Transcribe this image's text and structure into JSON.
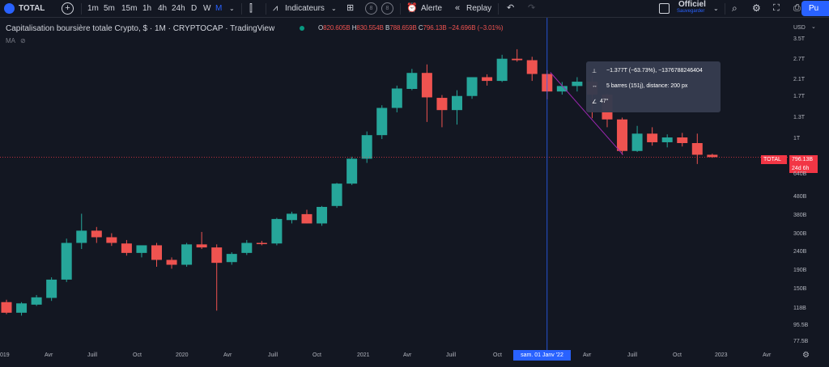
{
  "toolbar": {
    "symbol": "TOTAL",
    "intervals": [
      "1m",
      "5m",
      "15m",
      "1h",
      "4h",
      "24h",
      "D",
      "W",
      "M"
    ],
    "active_interval": "M",
    "indicators_label": "Indicateurs",
    "alert_label": "Alerte",
    "replay_label": "Replay",
    "save_title": "Officiel",
    "save_subtitle": "Sauvegarder",
    "publish_label": "Pu",
    "ring1": "8",
    "ring2": "8"
  },
  "legend": {
    "title": "Capitalisation boursière totale Crypto, $ · 1M · CRYPTOCAP · TradingView",
    "o_key": "O",
    "o_val": "820.605B",
    "h_key": "H",
    "h_val": "830.554B",
    "b_key": "B",
    "b_val": "788.659B",
    "c_key": "C",
    "c_val": "796.13B",
    "change": "−24.696B (−3.01%)",
    "ma": "MA"
  },
  "tooltip": {
    "line1": "−1.377T (−63.73%), −1376788246404",
    "line2": "5 barres (151j), distance: 200 px",
    "line3": "47°"
  },
  "price_tag": {
    "symbol": "TOTAL",
    "price": "796.13B",
    "countdown": "24d 6h"
  },
  "crosshair_date": "sam. 01 Janv '22",
  "chart_data": {
    "type": "candlestick",
    "title": "Capitalisation boursière totale Crypto, $ · 1M · CRYPTOCAP · TradingView",
    "y_scale": "log",
    "y_ticks": [
      "3.5T",
      "2.7T",
      "2.1T",
      "1.7T",
      "1.3T",
      "1T",
      "796.13B",
      "640B",
      "480B",
      "380B",
      "300B",
      "240B",
      "190B",
      "150B",
      "118B",
      "95.5B",
      "77.5B"
    ],
    "x_ticks": [
      "019",
      "Avr",
      "Juill",
      "Oct",
      "2020",
      "Avr",
      "Juill",
      "Oct",
      "2021",
      "Avr",
      "Juill",
      "Oct",
      "sam. 01 Janv '22",
      "Avr",
      "Juill",
      "Oct",
      "2023",
      "Avr"
    ],
    "candles": [
      {
        "o": 128,
        "h": 132,
        "l": 110,
        "c": 112
      },
      {
        "o": 112,
        "h": 128,
        "l": 108,
        "c": 126
      },
      {
        "o": 124,
        "h": 140,
        "l": 122,
        "c": 136
      },
      {
        "o": 135,
        "h": 175,
        "l": 130,
        "c": 170
      },
      {
        "o": 170,
        "h": 285,
        "l": 165,
        "c": 270
      },
      {
        "o": 270,
        "h": 390,
        "l": 250,
        "c": 315
      },
      {
        "o": 315,
        "h": 330,
        "l": 270,
        "c": 290
      },
      {
        "o": 290,
        "h": 305,
        "l": 260,
        "c": 270
      },
      {
        "o": 268,
        "h": 280,
        "l": 230,
        "c": 238
      },
      {
        "o": 238,
        "h": 260,
        "l": 225,
        "c": 262
      },
      {
        "o": 262,
        "h": 270,
        "l": 200,
        "c": 218
      },
      {
        "o": 218,
        "h": 225,
        "l": 195,
        "c": 205
      },
      {
        "o": 205,
        "h": 270,
        "l": 200,
        "c": 265
      },
      {
        "o": 265,
        "h": 310,
        "l": 250,
        "c": 255
      },
      {
        "o": 255,
        "h": 265,
        "l": 115,
        "c": 210
      },
      {
        "o": 212,
        "h": 240,
        "l": 205,
        "c": 235
      },
      {
        "o": 238,
        "h": 280,
        "l": 232,
        "c": 270
      },
      {
        "o": 270,
        "h": 277,
        "l": 262,
        "c": 266
      },
      {
        "o": 268,
        "h": 370,
        "l": 262,
        "c": 365
      },
      {
        "o": 360,
        "h": 400,
        "l": 345,
        "c": 390
      },
      {
        "o": 388,
        "h": 410,
        "l": 345,
        "c": 345
      },
      {
        "o": 345,
        "h": 430,
        "l": 335,
        "c": 425
      },
      {
        "o": 430,
        "h": 575,
        "l": 420,
        "c": 570
      },
      {
        "o": 570,
        "h": 800,
        "l": 560,
        "c": 780
      },
      {
        "o": 780,
        "h": 1100,
        "l": 740,
        "c": 1050
      },
      {
        "o": 1050,
        "h": 1530,
        "l": 1000,
        "c": 1480
      },
      {
        "o": 1480,
        "h": 1960,
        "l": 1400,
        "c": 1890
      },
      {
        "o": 1880,
        "h": 2420,
        "l": 1850,
        "c": 2300
      },
      {
        "o": 2300,
        "h": 2560,
        "l": 1240,
        "c": 1690
      },
      {
        "o": 1680,
        "h": 1740,
        "l": 1160,
        "c": 1440
      },
      {
        "o": 1440,
        "h": 1850,
        "l": 1200,
        "c": 1720
      },
      {
        "o": 1720,
        "h": 2180,
        "l": 1660,
        "c": 2180
      },
      {
        "o": 2180,
        "h": 2260,
        "l": 1960,
        "c": 2080
      },
      {
        "o": 2080,
        "h": 2890,
        "l": 2050,
        "c": 2750
      },
      {
        "o": 2750,
        "h": 3100,
        "l": 2650,
        "c": 2700
      },
      {
        "o": 2700,
        "h": 2820,
        "l": 2080,
        "c": 2270
      },
      {
        "o": 2270,
        "h": 2380,
        "l": 1650,
        "c": 1820
      },
      {
        "o": 1820,
        "h": 2050,
        "l": 1750,
        "c": 1950
      },
      {
        "o": 1950,
        "h": 2180,
        "l": 1820,
        "c": 2060
      },
      {
        "o": 2060,
        "h": 2200,
        "l": 1300,
        "c": 1750
      },
      {
        "o": 1750,
        "h": 1780,
        "l": 1160,
        "c": 1280
      },
      {
        "o": 1280,
        "h": 1310,
        "l": 820,
        "c": 860
      },
      {
        "o": 860,
        "h": 1180,
        "l": 850,
        "c": 1070
      },
      {
        "o": 1070,
        "h": 1160,
        "l": 920,
        "c": 960
      },
      {
        "o": 960,
        "h": 1060,
        "l": 900,
        "c": 1020
      },
      {
        "o": 1020,
        "h": 1080,
        "l": 910,
        "c": 950
      },
      {
        "o": 950,
        "h": 1070,
        "l": 730,
        "c": 820
      },
      {
        "o": 820,
        "h": 831,
        "l": 789,
        "c": 796
      }
    ],
    "crosshair_index": 36,
    "price_line": 796.13
  },
  "colors": {
    "up": "#26a69a",
    "down": "#ef5350",
    "bg": "#131722",
    "accent": "#2962ff"
  }
}
